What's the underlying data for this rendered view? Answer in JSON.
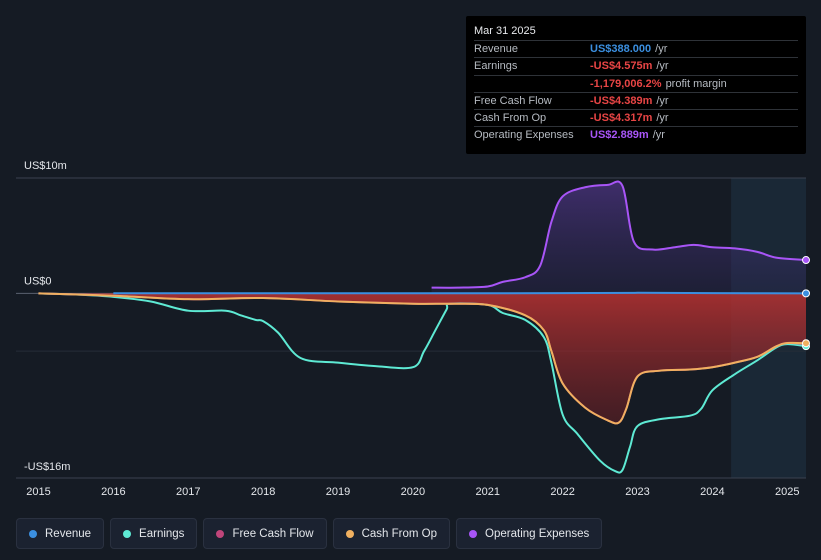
{
  "tooltip": {
    "date": "Mar 31 2025",
    "rows": [
      {
        "label": "Revenue",
        "value": "US$388.000",
        "unit": "/yr",
        "color": "#3b8fe0"
      },
      {
        "label": "Earnings",
        "value": "-US$4.575m",
        "unit": "/yr",
        "color": "#e84545"
      },
      {
        "label": "",
        "value": "-1,179,006.2%",
        "unit": "profit margin",
        "color": "#e84545"
      },
      {
        "label": "Free Cash Flow",
        "value": "-US$4.389m",
        "unit": "/yr",
        "color": "#e84545"
      },
      {
        "label": "Cash From Op",
        "value": "-US$4.317m",
        "unit": "/yr",
        "color": "#e84545"
      },
      {
        "label": "Operating Expenses",
        "value": "US$2.889m",
        "unit": "/yr",
        "color": "#a855f7"
      }
    ]
  },
  "legend": [
    {
      "label": "Revenue",
      "color": "#3b8fe0"
    },
    {
      "label": "Earnings",
      "color": "#5eead4"
    },
    {
      "label": "Free Cash Flow",
      "color": "#c0457a"
    },
    {
      "label": "Cash From Op",
      "color": "#f0b060"
    },
    {
      "label": "Operating Expenses",
      "color": "#a855f7"
    }
  ],
  "chart_data": {
    "type": "area",
    "y_top_label": "US$10m",
    "y_zero_label": "US$0",
    "y_bottom_label": "-US$16m",
    "ylim": [
      -16,
      10
    ],
    "xlim": [
      2014.7,
      2025.25
    ],
    "x_ticks": [
      "2015",
      "2016",
      "2017",
      "2018",
      "2019",
      "2020",
      "2021",
      "2022",
      "2023",
      "2024",
      "2025"
    ],
    "series": [
      {
        "name": "Revenue",
        "color": "#3b8fe0",
        "x": [
          2016.0,
          2017.0,
          2018.0,
          2019.0,
          2020.0,
          2021.0,
          2022.0,
          2023.0,
          2024.0,
          2025.25
        ],
        "y": [
          0.01,
          0.01,
          0.01,
          0.01,
          0.01,
          0.01,
          0.02,
          0.05,
          0.02,
          0.0004
        ]
      },
      {
        "name": "Earnings",
        "color": "#5eead4",
        "x": [
          2015.0,
          2015.5,
          2016.0,
          2016.5,
          2017.0,
          2017.5,
          2017.7,
          2017.9,
          2018.0,
          2018.2,
          2018.5,
          2019.0,
          2019.5,
          2020.0,
          2020.15,
          2020.3,
          2020.45,
          2020.5,
          2021.0,
          2021.2,
          2021.5,
          2021.75,
          2021.85,
          2022.0,
          2022.2,
          2022.5,
          2022.7,
          2022.8,
          2022.9,
          2023.0,
          2023.3,
          2023.7,
          2023.85,
          2024.0,
          2024.3,
          2024.6,
          2024.85,
          2025.0,
          2025.25
        ],
        "y": [
          0.0,
          -0.1,
          -0.3,
          -0.7,
          -1.5,
          -1.5,
          -1.9,
          -2.3,
          -2.4,
          -3.4,
          -5.6,
          -6.0,
          -6.3,
          -6.4,
          -5.0,
          -3.2,
          -1.4,
          -0.9,
          -1.0,
          -1.7,
          -2.3,
          -3.8,
          -6.0,
          -10.5,
          -12.2,
          -14.5,
          -15.4,
          -15.3,
          -13.3,
          -11.5,
          -10.9,
          -10.6,
          -10.0,
          -8.4,
          -7.0,
          -5.8,
          -4.7,
          -4.4,
          -4.575
        ]
      },
      {
        "name": "Free Cash Flow",
        "color": "#c0457a",
        "x": [
          2015.0,
          2016.0,
          2017.0,
          2018.0,
          2019.0,
          2020.0,
          2020.5,
          2021.0,
          2021.5,
          2021.75,
          2021.85,
          2022.0,
          2022.3,
          2022.6,
          2022.75,
          2022.85,
          2023.0,
          2023.3,
          2023.7,
          2024.0,
          2024.3,
          2024.6,
          2024.85,
          2025.0,
          2025.25
        ],
        "y": [
          0.0,
          -0.2,
          -0.5,
          -0.4,
          -0.7,
          -0.9,
          -0.9,
          -1.0,
          -1.9,
          -3.2,
          -5.0,
          -7.8,
          -9.9,
          -11.0,
          -11.2,
          -10.0,
          -7.2,
          -6.7,
          -6.6,
          -6.4,
          -6.0,
          -5.5,
          -4.6,
          -4.3,
          -4.389
        ]
      },
      {
        "name": "Cash From Op",
        "color": "#f0b060",
        "x": [
          2015.0,
          2016.0,
          2017.0,
          2018.0,
          2019.0,
          2020.0,
          2020.5,
          2021.0,
          2021.5,
          2021.75,
          2021.85,
          2022.0,
          2022.3,
          2022.6,
          2022.75,
          2022.85,
          2023.0,
          2023.3,
          2023.7,
          2024.0,
          2024.3,
          2024.6,
          2024.85,
          2025.0,
          2025.25
        ],
        "y": [
          0.0,
          -0.2,
          -0.5,
          -0.4,
          -0.7,
          -0.9,
          -0.9,
          -1.0,
          -1.9,
          -3.2,
          -5.0,
          -7.8,
          -9.9,
          -11.0,
          -11.2,
          -10.0,
          -7.2,
          -6.7,
          -6.6,
          -6.4,
          -6.0,
          -5.5,
          -4.6,
          -4.3,
          -4.317
        ]
      },
      {
        "name": "Operating Expenses",
        "color": "#a855f7",
        "x": [
          2020.25,
          2020.6,
          2021.0,
          2021.2,
          2021.5,
          2021.7,
          2021.85,
          2022.0,
          2022.3,
          2022.6,
          2022.8,
          2022.95,
          2023.2,
          2023.5,
          2023.75,
          2024.0,
          2024.3,
          2024.6,
          2024.85,
          2025.25
        ],
        "y": [
          0.5,
          0.5,
          0.6,
          1.0,
          1.4,
          2.4,
          6.2,
          8.4,
          9.2,
          9.4,
          9.3,
          4.5,
          3.8,
          4.0,
          4.2,
          4.0,
          3.9,
          3.6,
          3.1,
          2.889
        ]
      }
    ],
    "forecast_start": 2024.25
  }
}
